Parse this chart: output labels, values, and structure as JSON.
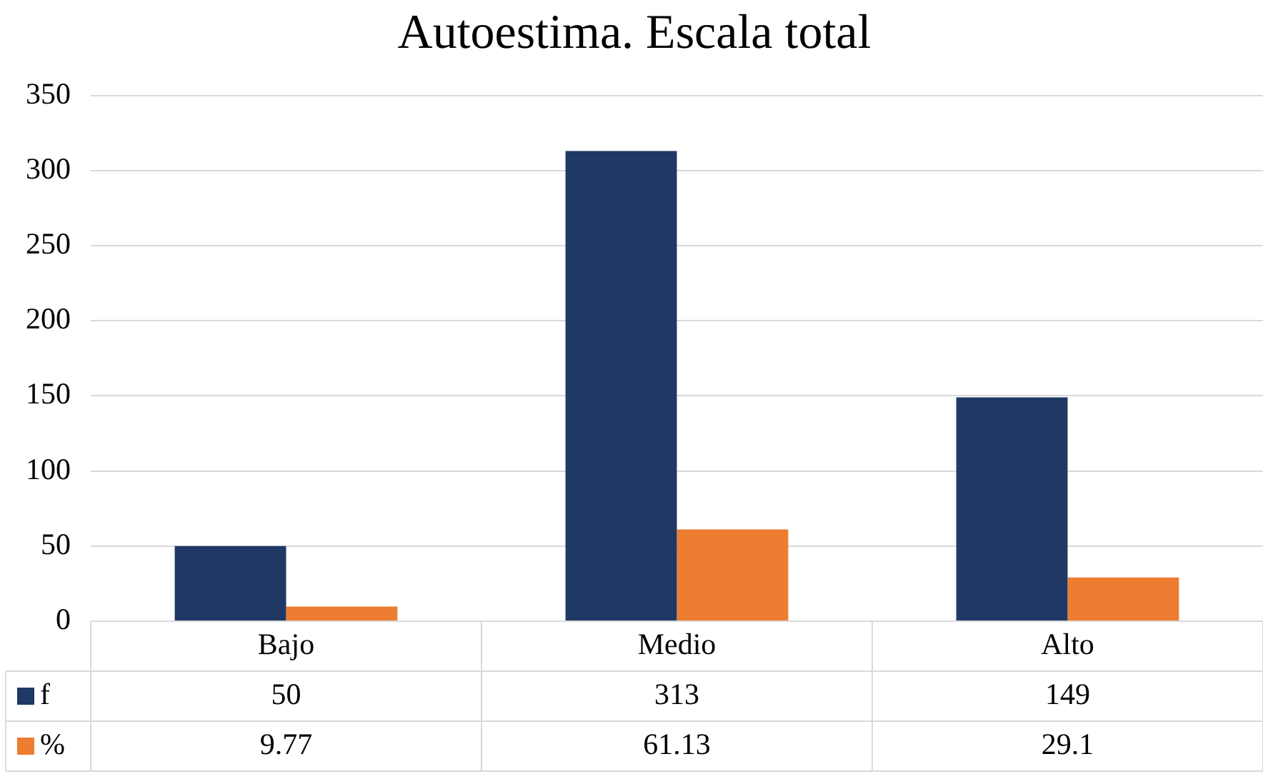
{
  "chart_data": {
    "type": "bar",
    "title": "Autoestima. Escala total",
    "categories": [
      "Bajo",
      "Medio",
      "Alto"
    ],
    "series": [
      {
        "name": "f",
        "color": "#203864",
        "values": [
          50,
          313,
          149
        ]
      },
      {
        "name": "%",
        "color": "#ed7d31",
        "values": [
          9.77,
          61.13,
          29.1
        ]
      }
    ],
    "ylim": [
      0,
      350
    ],
    "yticks": [
      0,
      50,
      100,
      150,
      200,
      250,
      300,
      350
    ],
    "grid": "y",
    "legend": "bottom",
    "data_labels": true
  }
}
